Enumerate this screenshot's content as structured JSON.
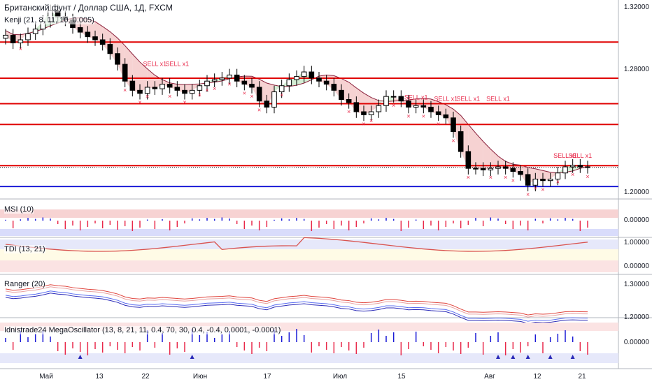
{
  "header": {
    "title": "Британский фунт / Доллар США, 1Д, FXCM",
    "indicator_kenji": "Kenji (21, 8, 11, 10, 0.005)"
  },
  "panes": {
    "msi_title": "MSI (10)",
    "tdi_title": "TDI (13, 21)",
    "ranger_title": "Ranger (20)",
    "mega_title": "Idnistrade24 MegaOscillator (13, 8, 21, 11, 0.4, 70, 30, 0.4, -0.4, 0.0001, -0.0001)"
  },
  "price_axis": {
    "ticks": [
      "1.32000",
      "1.28000",
      "1.20000"
    ],
    "levels": [
      {
        "label": "1.29753",
        "color": "#e00000"
      },
      {
        "label": "1.27393",
        "color": "#e00000"
      },
      {
        "label": "1.25726",
        "color": "#e00000"
      },
      {
        "label": "1.24371",
        "color": "#e00000"
      },
      {
        "label": "1.21677",
        "color": "#e00000"
      },
      {
        "label": "1.21563",
        "color": "#131722"
      },
      {
        "label": "1.20317",
        "color": "#1a1ad6"
      }
    ]
  },
  "osc_axis": {
    "msi": "0.00000",
    "tdi_top": "1.00000",
    "tdi_bottom": "0.00000",
    "ranger_top": "1.30000",
    "ranger_bottom": "1.20000",
    "mega": "0.00000"
  },
  "time_axis": [
    "Май",
    "13",
    "22",
    "Июн",
    "17",
    "Июл",
    "15",
    "Авг",
    "12",
    "21"
  ],
  "signals": {
    "sell_label": "SELL x1"
  },
  "colors": {
    "up": "#ffffff",
    "down": "#000000",
    "sell": "#e8294a",
    "level_red": "#e00000",
    "level_blue": "#1a1ad6",
    "band_red": "#f4c7c7",
    "band_green": "#c9e8c9"
  },
  "chart_data": {
    "type": "candlestick",
    "symbol": "Британский фунт / Доллар США",
    "timeframe": "1Д",
    "ylim": [
      1.195,
      1.325
    ],
    "horizontal_levels": [
      1.29753,
      1.27393,
      1.25726,
      1.24371,
      1.21677,
      1.20317
    ],
    "last_price": 1.21563,
    "close": [
      1.302,
      1.297,
      1.299,
      1.303,
      1.306,
      1.311,
      1.318,
      1.314,
      1.312,
      1.307,
      1.304,
      1.301,
      1.299,
      1.296,
      1.29,
      1.283,
      1.272,
      1.266,
      1.264,
      1.268,
      1.267,
      1.27,
      1.268,
      1.266,
      1.264,
      1.266,
      1.269,
      1.272,
      1.273,
      1.274,
      1.276,
      1.272,
      1.27,
      1.268,
      1.259,
      1.255,
      1.265,
      1.269,
      1.273,
      1.275,
      1.278,
      1.274,
      1.272,
      1.27,
      1.266,
      1.26,
      1.258,
      1.252,
      1.25,
      1.252,
      1.256,
      1.262,
      1.262,
      1.259,
      1.255,
      1.256,
      1.255,
      1.252,
      1.25,
      1.248,
      1.239,
      1.226,
      1.215,
      1.215,
      1.214,
      1.215,
      1.216,
      1.215,
      1.213,
      1.211,
      1.204,
      1.208,
      1.207,
      1.208,
      1.212,
      1.216,
      1.217,
      1.216,
      1.2156
    ]
  }
}
